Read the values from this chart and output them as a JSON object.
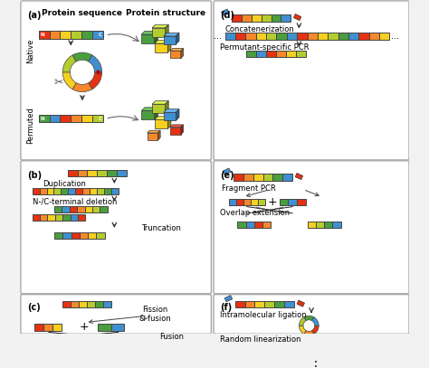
{
  "colors": {
    "red": "#e63212",
    "orange": "#f5882a",
    "yellow": "#f5d020",
    "lime": "#b5cc2e",
    "green": "#4a9e3f",
    "blue": "#4090d0",
    "bg": "#f0f0f0",
    "border": "#888888"
  },
  "seq_native": [
    "#e63212",
    "#f5882a",
    "#f5d020",
    "#b5cc2e",
    "#4a9e3f",
    "#4090d0"
  ],
  "seq_permuted": [
    "#4a9e3f",
    "#4090d0",
    "#e63212",
    "#f5882a",
    "#f5d020",
    "#b5cc2e"
  ],
  "panel_a": {
    "label": "(a)",
    "title_seq": "Protein sequence",
    "title_struct": "Protein structure",
    "native_label": "Native",
    "permuted_label": "Permuted"
  },
  "panel_b": {
    "label": "(b)",
    "duplication_text": "Duplication",
    "deletion_text": "N-/C-terminal deletion",
    "truncation_text": "Truncation"
  },
  "panel_c": {
    "label": "(c)",
    "fission_text": "Fission\n& fusion",
    "fusion_text": "Fusion"
  },
  "panel_d": {
    "label": "(d)",
    "concat_text": "Concatenerization",
    "pcr_text": "Permutant-specific PCR"
  },
  "panel_e": {
    "label": "(e)",
    "fragment_text": "Fragment PCR",
    "overlap_text": "Overlap extension"
  },
  "panel_f": {
    "label": "(f)",
    "ligation_text": "Intramolecular ligation",
    "linear_text": "Random linearization"
  }
}
